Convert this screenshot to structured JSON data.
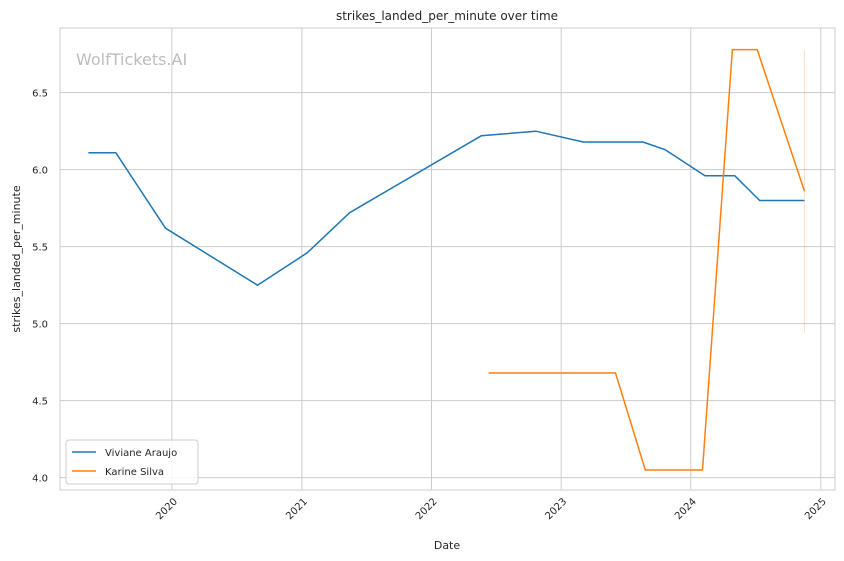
{
  "chart_data": {
    "type": "line",
    "title": "strikes_landed_per_minute over time",
    "xlabel": "Date",
    "ylabel": "strikes_landed_per_minute",
    "watermark": "WolfTickets.AI",
    "xlim": [
      "2019-02-20",
      "2025-02-10"
    ],
    "ylim": [
      3.92,
      6.92
    ],
    "x_ticks": [
      "2020-01-01",
      "2021-01-01",
      "2022-01-01",
      "2023-01-01",
      "2024-01-01",
      "2025-01-01"
    ],
    "x_tick_labels": [
      "2020",
      "2021",
      "2022",
      "2023",
      "2024",
      "2025"
    ],
    "y_ticks": [
      4.0,
      4.5,
      5.0,
      5.5,
      6.0,
      6.5
    ],
    "y_tick_labels": [
      "4.0",
      "4.5",
      "5.0",
      "5.5",
      "6.0",
      "6.5"
    ],
    "grid": true,
    "legend_position": "lower-left",
    "series": [
      {
        "name": "Viviane Araujo",
        "color": "#1f77b4",
        "points": [
          {
            "x": "2019-05-11",
            "y": 6.11
          },
          {
            "x": "2019-07-27",
            "y": 6.11
          },
          {
            "x": "2019-12-14",
            "y": 5.62
          },
          {
            "x": "2020-08-29",
            "y": 5.25
          },
          {
            "x": "2021-01-16",
            "y": 5.46
          },
          {
            "x": "2021-05-15",
            "y": 5.72
          },
          {
            "x": "2022-05-21",
            "y": 6.22
          },
          {
            "x": "2022-10-22",
            "y": 6.25
          },
          {
            "x": "2023-03-04",
            "y": 6.18
          },
          {
            "x": "2023-08-19",
            "y": 6.18
          },
          {
            "x": "2023-10-21",
            "y": 6.13
          },
          {
            "x": "2024-02-10",
            "y": 5.96
          },
          {
            "x": "2024-05-04",
            "y": 5.96
          },
          {
            "x": "2024-07-13",
            "y": 5.8
          },
          {
            "x": "2024-11-16",
            "y": 5.8
          }
        ]
      },
      {
        "name": "Karine Silva",
        "color": "#ff7f0e",
        "points": [
          {
            "x": "2022-06-11",
            "y": 4.68
          },
          {
            "x": "2023-06-03",
            "y": 4.68
          },
          {
            "x": "2023-08-26",
            "y": 4.05
          },
          {
            "x": "2024-02-03",
            "y": 4.05
          },
          {
            "x": "2024-04-27",
            "y": 6.78
          },
          {
            "x": "2024-07-06",
            "y": 6.78
          },
          {
            "x": "2024-11-16",
            "y": 5.86
          }
        ]
      }
    ],
    "error_band": {
      "series": "Karine Silva",
      "x": "2024-11-16",
      "low": 4.94,
      "high": 6.78
    }
  }
}
